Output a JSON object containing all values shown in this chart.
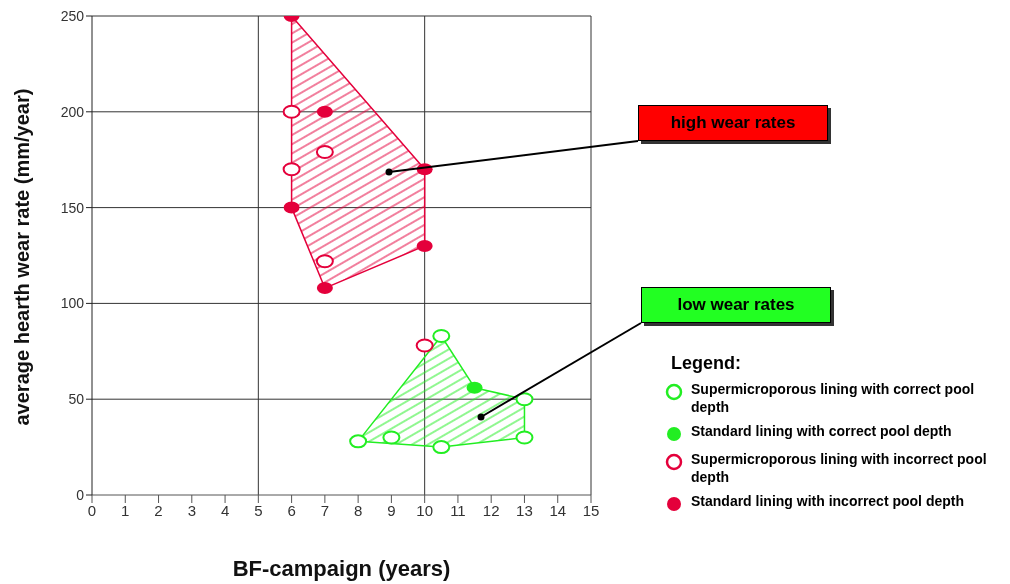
{
  "chart_data": {
    "type": "scatter",
    "xlabel": "BF-campaign (years)",
    "ylabel": "average hearth wear rate (mm/year)",
    "legend_title": "Legend:",
    "legend": "right",
    "grid": true,
    "marker": "circle",
    "xlim": [
      0,
      15
    ],
    "xticks": [
      0,
      1,
      2,
      3,
      4,
      5,
      6,
      7,
      8,
      9,
      10,
      11,
      12,
      13,
      14,
      15
    ],
    "ylim": [
      0,
      250
    ],
    "yticks": [
      0,
      50,
      100,
      150,
      200,
      250
    ],
    "series": [
      {
        "type": "area",
        "marker": "none",
        "color": "#e4003b",
        "x": [
          6,
          10,
          10,
          7,
          6,
          6
        ],
        "values": [
          250,
          170,
          130,
          108,
          150,
          250
        ]
      },
      {
        "type": "area",
        "marker": "none",
        "color": "#22ee22",
        "x": [
          10.5,
          11.5,
          13,
          13,
          10.5,
          8,
          10.5
        ],
        "values": [
          83,
          56,
          50,
          30,
          25,
          28,
          83
        ]
      },
      {
        "name": "Supermicroporous lining with correct pool depth",
        "color": "#22ee22",
        "x": [
          10.5,
          8,
          9,
          10.5,
          13,
          13
        ],
        "values": [
          83,
          28,
          30,
          25,
          50,
          30
        ]
      },
      {
        "name": "Standard lining with correct pool depth",
        "color": "#22ee22",
        "x": [
          11.5
        ],
        "values": [
          56
        ]
      },
      {
        "name": "Supermicroporous lining with incorrect pool depth",
        "color": "#e4003b",
        "x": [
          6,
          7,
          6,
          7,
          10
        ],
        "values": [
          200,
          179,
          170,
          122,
          78
        ]
      },
      {
        "name": "Standard lining with incorrect pool depth",
        "color": "#e4003b",
        "x": [
          6,
          7,
          10,
          6,
          10,
          7
        ],
        "values": [
          250,
          200,
          170,
          150,
          130,
          108
        ]
      }
    ],
    "annotations": [
      "high wear rates",
      "low wear rates"
    ]
  }
}
